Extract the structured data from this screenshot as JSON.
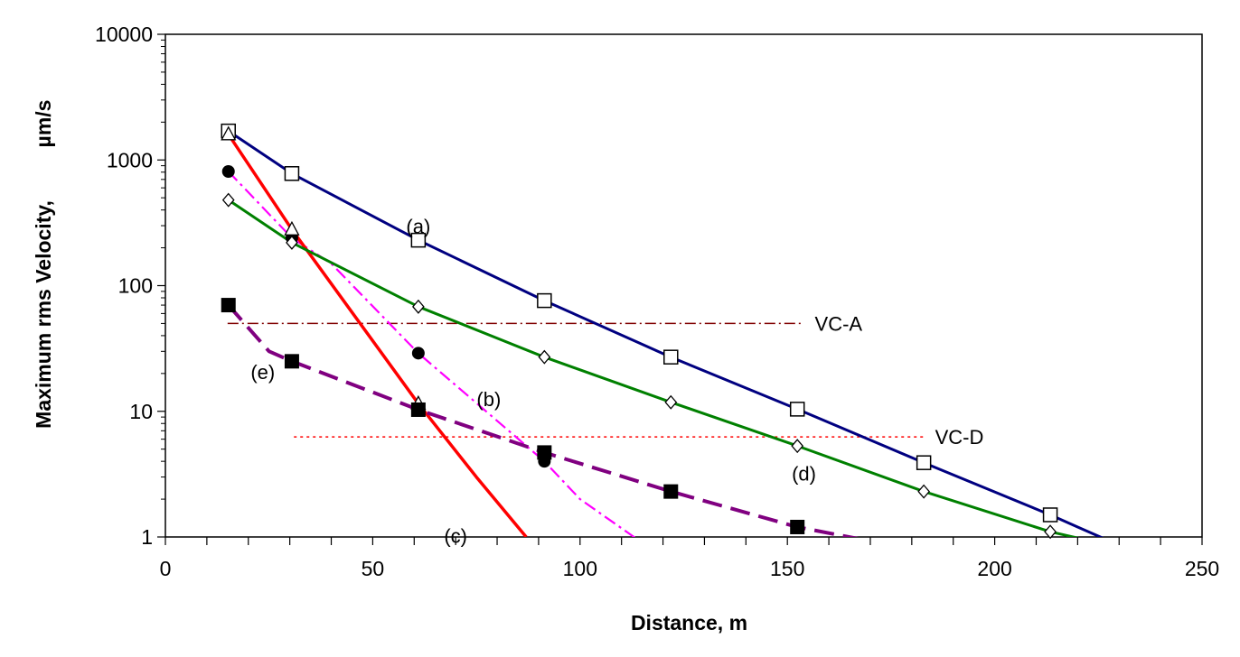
{
  "chart_data": {
    "type": "line",
    "xlabel": "Distance, m",
    "ylabel_left": "Maximum rms Velocity,",
    "ylabel_unit": "µm/s",
    "xlim": [
      0,
      250
    ],
    "ylim": [
      1,
      10000
    ],
    "y_scale": "log",
    "x_ticks": [
      "0",
      "50",
      "100",
      "150",
      "200",
      "250"
    ],
    "y_ticks": [
      "1",
      "10",
      "100",
      "1000",
      "10000"
    ],
    "grid": false,
    "legend": "none",
    "series": [
      {
        "name": "(a)",
        "color": "#000080",
        "marker": "open-square",
        "markers": {
          "x": [
            15.2,
            30.5,
            61,
            91.4,
            121.9,
            152.4,
            182.9,
            213.4
          ],
          "y": [
            1700,
            780,
            230,
            76,
            27,
            10.4,
            3.9,
            1.5
          ]
        },
        "line": {
          "x": [
            15.2,
            30.5,
            61,
            91.4,
            121.9,
            152.4,
            182.9,
            213.4,
            220,
            227,
            232
          ],
          "y": [
            1700,
            780,
            230,
            76,
            27,
            10.4,
            3.9,
            1.5,
            1.2,
            0.95,
            0.9
          ]
        }
      },
      {
        "name": "(b)",
        "color": "#ff00ff",
        "marker": "filled-circle",
        "markers": {
          "x": [
            15.2,
            30.5,
            61,
            91.4
          ],
          "y": [
            810,
            240,
            29,
            4
          ]
        },
        "line": {
          "x": [
            15.2,
            30.5,
            40,
            61,
            91.4,
            100,
            115
          ],
          "y": [
            810,
            240,
            150,
            29,
            4,
            2,
            0.9
          ]
        }
      },
      {
        "name": "(c)",
        "color": "#ff0000",
        "marker": "open-triangle",
        "markers": {
          "x": [
            15.2,
            30.5,
            61
          ],
          "y": [
            1600,
            280,
            11.5
          ]
        },
        "line": {
          "x": [
            15.2,
            30.5,
            61,
            75,
            87
          ],
          "y": [
            1600,
            280,
            11.5,
            3,
            1
          ]
        }
      },
      {
        "name": "(d)",
        "color": "#008000",
        "marker": "open-diamond",
        "markers": {
          "x": [
            15.2,
            30.5,
            61,
            91.4,
            121.9,
            152.4,
            182.9,
            213.4
          ],
          "y": [
            480,
            220,
            68,
            27,
            11.8,
            5.3,
            2.3,
            1.1
          ]
        },
        "line": {
          "x": [
            15.2,
            30.5,
            61,
            91.4,
            121.9,
            152.4,
            182.9,
            213.4,
            225,
            233
          ],
          "y": [
            480,
            220,
            68,
            27,
            11.8,
            5.3,
            2.3,
            1.1,
            0.9,
            0.85
          ]
        }
      },
      {
        "name": "(e)",
        "color": "#800080",
        "marker": "filled-square",
        "markers": {
          "x": [
            15.2,
            30.5,
            61,
            91.4,
            121.9,
            152.4
          ],
          "y": [
            70,
            25,
            10.3,
            4.7,
            2.3,
            1.2
          ]
        },
        "line": {
          "x": [
            15.2,
            25,
            30.5,
            61,
            91.4,
            121.9,
            152.4,
            176
          ],
          "y": [
            70,
            30,
            25,
            10.3,
            4.7,
            2.3,
            1.2,
            0.85
          ]
        }
      }
    ],
    "reference_lines": [
      {
        "label": "VC-A",
        "y": 50,
        "x_from": 15,
        "x_to": 154,
        "color": "#800000",
        "style": "dash-dot"
      },
      {
        "label": "VC-D",
        "y": 6.25,
        "x_from": 31,
        "x_to": 183,
        "color": "#ff0000",
        "style": "dotted"
      }
    ],
    "annotations": [
      {
        "text": "(a)",
        "x": 61,
        "y": 260
      },
      {
        "text": "(b)",
        "x": 78,
        "y": 11
      },
      {
        "text": "(c)",
        "x": 70,
        "y": 0.9
      },
      {
        "text": "(d)",
        "x": 154,
        "y": 2.8
      },
      {
        "text": "(e)",
        "x": 23.5,
        "y": 18
      }
    ]
  }
}
